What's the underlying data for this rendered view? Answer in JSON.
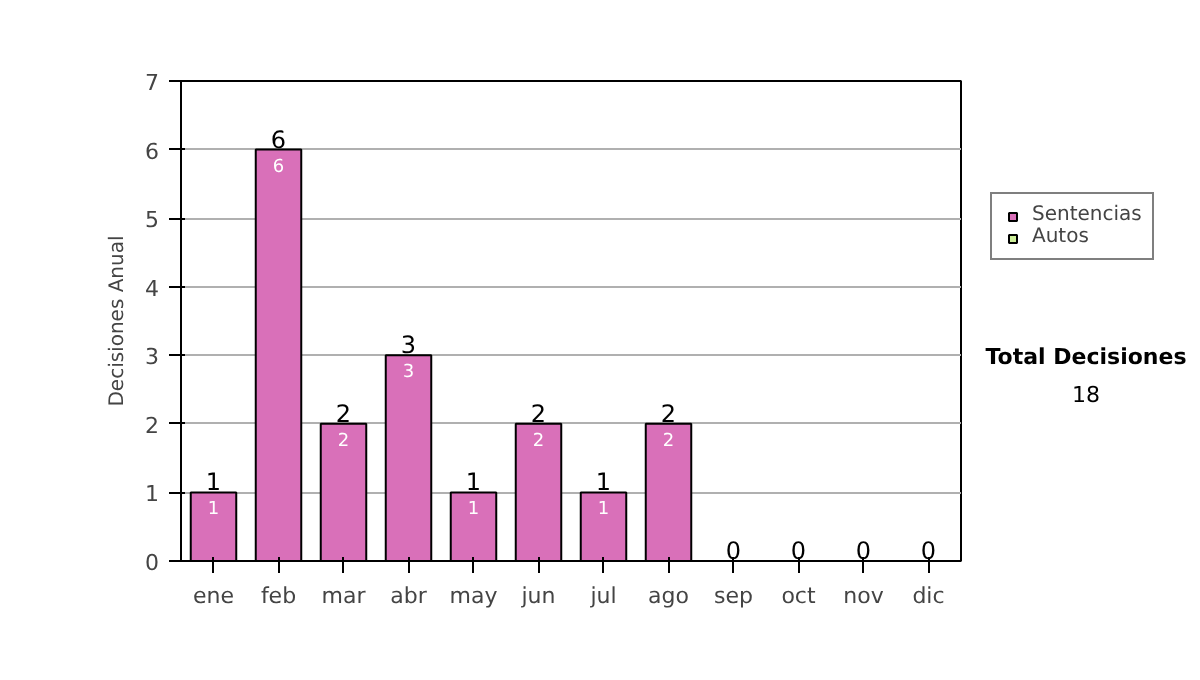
{
  "chart_data": {
    "type": "bar",
    "stacked": true,
    "ylabel": "Decisiones Anual",
    "categories": [
      "ene",
      "feb",
      "mar",
      "abr",
      "may",
      "jun",
      "jul",
      "ago",
      "sep",
      "oct",
      "nov",
      "dic"
    ],
    "series": [
      {
        "name": "Sentencias",
        "color": "#d970b9",
        "values": [
          1,
          6,
          2,
          3,
          1,
          2,
          1,
          2,
          0,
          0,
          0,
          0
        ],
        "value_labels": [
          "1",
          "6",
          "2",
          "3",
          "1",
          "2",
          "1",
          "2",
          null,
          null,
          null,
          null
        ]
      },
      {
        "name": "Autos",
        "color": "#ccee99",
        "values": [
          0,
          0,
          0,
          0,
          0,
          0,
          0,
          0,
          0,
          0,
          0,
          0
        ]
      }
    ],
    "totals": [
      "1",
      "6",
      "2",
      "3",
      "1",
      "2",
      "1",
      "2",
      "0",
      "0",
      "0",
      "0"
    ],
    "ylim": [
      0,
      7
    ],
    "yticks": [
      0,
      1,
      2,
      3,
      4,
      5,
      6,
      7
    ],
    "grid": "y",
    "legend": "right",
    "annotations": [
      "Total Decisiones",
      "18"
    ]
  }
}
